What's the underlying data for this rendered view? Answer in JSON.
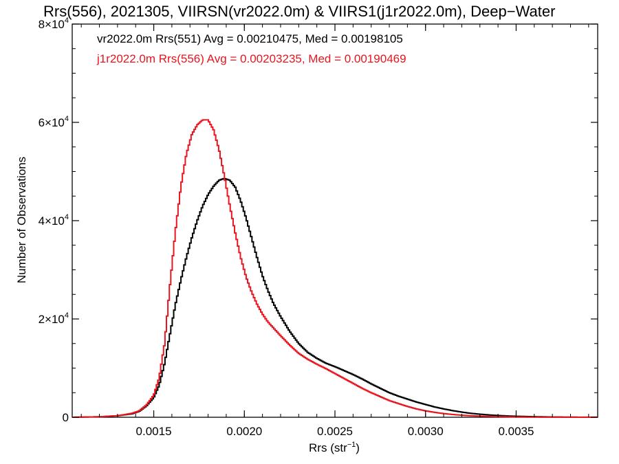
{
  "chart_data": {
    "type": "line",
    "step": true,
    "title": "Rrs(556), 2021305, VIIRSN(vr2022.0m) & VIIRS1(j1r2022.0m), Deep−Water",
    "xlabel": "Rrs (str",
    "xlabel_sup": "−1",
    "xlabel_close": ")",
    "ylabel": "Number of Observations",
    "xlim": [
      0.00105,
      0.00395
    ],
    "ylim": [
      0,
      80000
    ],
    "x_ticks": [
      {
        "value": 0.0015,
        "label": "0.0015"
      },
      {
        "value": 0.002,
        "label": "0.0020"
      },
      {
        "value": 0.0025,
        "label": "0.0025"
      },
      {
        "value": 0.003,
        "label": "0.0030"
      },
      {
        "value": 0.0035,
        "label": "0.0035"
      }
    ],
    "y_ticks": [
      {
        "value": 0,
        "mant": "0",
        "exp": ""
      },
      {
        "value": 20000,
        "mant": "2×10",
        "exp": "4"
      },
      {
        "value": 40000,
        "mant": "4×10",
        "exp": "4"
      },
      {
        "value": 60000,
        "mant": "6×10",
        "exp": "4"
      },
      {
        "value": 80000,
        "mant": "8×10",
        "exp": "4"
      }
    ],
    "grid": false,
    "legend_position": "top-left",
    "annotations": [
      {
        "text": "vr2022.0m Rrs(551) Avg = 0.00210475, Med = 0.00198105",
        "color": "#000000"
      },
      {
        "text": "j1r2022.0m Rrs(556) Avg = 0.00203235, Med = 0.00190469",
        "color": "#e8141e"
      }
    ],
    "series": [
      {
        "color": "#000000",
        "points": [
          [
            0.00105,
            0
          ],
          [
            0.0012,
            100
          ],
          [
            0.0013,
            300
          ],
          [
            0.00138,
            700
          ],
          [
            0.00142,
            1200
          ],
          [
            0.00146,
            2300
          ],
          [
            0.0015,
            4000
          ],
          [
            0.00153,
            6500
          ],
          [
            0.00156,
            11000
          ],
          [
            0.00159,
            17000
          ],
          [
            0.00162,
            23000
          ],
          [
            0.00165,
            28000
          ],
          [
            0.00168,
            32500
          ],
          [
            0.00171,
            36500
          ],
          [
            0.00174,
            40000
          ],
          [
            0.00177,
            43000
          ],
          [
            0.0018,
            45300
          ],
          [
            0.00183,
            47000
          ],
          [
            0.00186,
            48200
          ],
          [
            0.00189,
            48600
          ],
          [
            0.00192,
            48200
          ],
          [
            0.00195,
            46800
          ],
          [
            0.00198,
            44000
          ],
          [
            0.00201,
            40500
          ],
          [
            0.00204,
            36500
          ],
          [
            0.00207,
            32500
          ],
          [
            0.0021,
            28800
          ],
          [
            0.00213,
            25800
          ],
          [
            0.00216,
            23200
          ],
          [
            0.0022,
            20500
          ],
          [
            0.00225,
            17500
          ],
          [
            0.0023,
            15000
          ],
          [
            0.00235,
            13200
          ],
          [
            0.0024,
            12000
          ],
          [
            0.00245,
            11000
          ],
          [
            0.0025,
            10300
          ],
          [
            0.00255,
            9500
          ],
          [
            0.0026,
            8700
          ],
          [
            0.00265,
            7800
          ],
          [
            0.0027,
            6800
          ],
          [
            0.00275,
            5900
          ],
          [
            0.0028,
            5000
          ],
          [
            0.00285,
            4300
          ],
          [
            0.0029,
            3700
          ],
          [
            0.00295,
            3100
          ],
          [
            0.003,
            2600
          ],
          [
            0.00305,
            2100
          ],
          [
            0.0031,
            1700
          ],
          [
            0.00315,
            1350
          ],
          [
            0.0032,
            1050
          ],
          [
            0.00325,
            800
          ],
          [
            0.0033,
            620
          ],
          [
            0.00335,
            480
          ],
          [
            0.0034,
            360
          ],
          [
            0.00345,
            270
          ],
          [
            0.0035,
            200
          ],
          [
            0.0036,
            120
          ],
          [
            0.0037,
            60
          ],
          [
            0.0038,
            30
          ],
          [
            0.00395,
            10
          ]
        ]
      },
      {
        "color": "#e8141e",
        "points": [
          [
            0.00105,
            0
          ],
          [
            0.0012,
            100
          ],
          [
            0.0013,
            300
          ],
          [
            0.00138,
            800
          ],
          [
            0.00142,
            1300
          ],
          [
            0.00146,
            2500
          ],
          [
            0.0015,
            4500
          ],
          [
            0.00153,
            8000
          ],
          [
            0.00156,
            15000
          ],
          [
            0.00159,
            27000
          ],
          [
            0.00162,
            38000
          ],
          [
            0.00165,
            47000
          ],
          [
            0.00168,
            53500
          ],
          [
            0.00171,
            57500
          ],
          [
            0.00174,
            59500
          ],
          [
            0.00177,
            60500
          ],
          [
            0.0018,
            60500
          ],
          [
            0.00183,
            58500
          ],
          [
            0.00186,
            54500
          ],
          [
            0.00189,
            49000
          ],
          [
            0.00192,
            43000
          ],
          [
            0.00195,
            37500
          ],
          [
            0.00198,
            32500
          ],
          [
            0.00201,
            28500
          ],
          [
            0.00204,
            25500
          ],
          [
            0.00207,
            23000
          ],
          [
            0.0021,
            21000
          ],
          [
            0.00213,
            19400
          ],
          [
            0.00216,
            18200
          ],
          [
            0.0022,
            16600
          ],
          [
            0.00225,
            14700
          ],
          [
            0.0023,
            13000
          ],
          [
            0.00235,
            11800
          ],
          [
            0.0024,
            10800
          ],
          [
            0.00245,
            9900
          ],
          [
            0.0025,
            8900
          ],
          [
            0.00255,
            7900
          ],
          [
            0.0026,
            6900
          ],
          [
            0.00265,
            5900
          ],
          [
            0.0027,
            5000
          ],
          [
            0.00275,
            4200
          ],
          [
            0.0028,
            3400
          ],
          [
            0.00285,
            2800
          ],
          [
            0.0029,
            2200
          ],
          [
            0.00295,
            1700
          ],
          [
            0.003,
            1300
          ],
          [
            0.00305,
            1000
          ],
          [
            0.0031,
            750
          ],
          [
            0.00315,
            560
          ],
          [
            0.0032,
            420
          ],
          [
            0.00325,
            310
          ],
          [
            0.0033,
            230
          ],
          [
            0.00335,
            170
          ],
          [
            0.0034,
            120
          ],
          [
            0.00345,
            90
          ],
          [
            0.0035,
            60
          ],
          [
            0.0036,
            30
          ],
          [
            0.0037,
            15
          ],
          [
            0.0038,
            8
          ],
          [
            0.00395,
            0
          ]
        ]
      }
    ]
  }
}
